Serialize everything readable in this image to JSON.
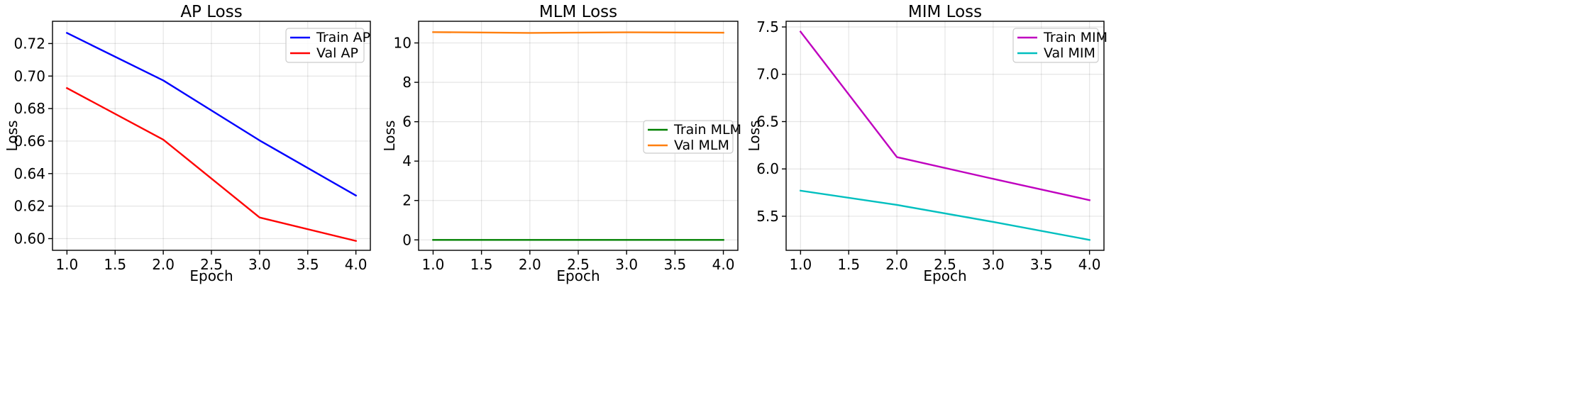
{
  "chart_data": [
    {
      "type": "line",
      "title": "AP Loss",
      "xlabel": "Epoch",
      "ylabel": "Loss",
      "xlim": [
        0.85,
        4.15
      ],
      "ylim": [
        0.5928,
        0.7337
      ],
      "xticks": [
        1.0,
        1.5,
        2.0,
        2.5,
        3.0,
        3.5,
        4.0
      ],
      "xtick_labels": [
        "1.0",
        "1.5",
        "2.0",
        "2.5",
        "3.0",
        "3.5",
        "4.0"
      ],
      "yticks": [
        0.6,
        0.62,
        0.64,
        0.66,
        0.68,
        0.7,
        0.72
      ],
      "ytick_labels": [
        "0.60",
        "0.62",
        "0.64",
        "0.66",
        "0.68",
        "0.70",
        "0.72"
      ],
      "grid": true,
      "legend": "upper-right",
      "x": [
        1,
        2,
        3,
        4
      ],
      "series": [
        {
          "name": "Train AP",
          "color": "#0000ff",
          "values": [
            0.7265,
            0.6973,
            0.6604,
            0.6265
          ]
        },
        {
          "name": "Val AP",
          "color": "#ff0000",
          "values": [
            0.6926,
            0.6609,
            0.613,
            0.5986
          ]
        }
      ]
    },
    {
      "type": "line",
      "title": "MLM Loss",
      "xlabel": "Epoch",
      "ylabel": "Loss",
      "xlim": [
        0.85,
        4.15
      ],
      "ylim": [
        -0.53,
        11.1
      ],
      "xticks": [
        1.0,
        1.5,
        2.0,
        2.5,
        3.0,
        3.5,
        4.0
      ],
      "xtick_labels": [
        "1.0",
        "1.5",
        "2.0",
        "2.5",
        "3.0",
        "3.5",
        "4.0"
      ],
      "yticks": [
        0,
        2,
        4,
        6,
        8,
        10
      ],
      "ytick_labels": [
        "0",
        "2",
        "4",
        "6",
        "8",
        "10"
      ],
      "grid": true,
      "legend": "center-right",
      "x": [
        1,
        2,
        3,
        4
      ],
      "series": [
        {
          "name": "Train MLM",
          "color": "#008000",
          "values": [
            0.0,
            0.0,
            0.0,
            0.0
          ]
        },
        {
          "name": "Val MLM",
          "color": "#ff7f0e",
          "values": [
            10.55,
            10.51,
            10.54,
            10.52
          ]
        }
      ]
    },
    {
      "type": "line",
      "title": "MIM Loss",
      "xlabel": "Epoch",
      "ylabel": "Loss",
      "xlim": [
        0.85,
        4.15
      ],
      "ylim": [
        5.14,
        7.56
      ],
      "xticks": [
        1.0,
        1.5,
        2.0,
        2.5,
        3.0,
        3.5,
        4.0
      ],
      "xtick_labels": [
        "1.0",
        "1.5",
        "2.0",
        "2.5",
        "3.0",
        "3.5",
        "4.0"
      ],
      "yticks": [
        5.5,
        6.0,
        6.5,
        7.0,
        7.5
      ],
      "ytick_labels": [
        "5.5",
        "6.0",
        "6.5",
        "7.0",
        "7.5"
      ],
      "grid": true,
      "legend": "upper-right",
      "x": [
        1,
        2,
        3,
        4
      ],
      "series": [
        {
          "name": "Train MIM",
          "color": "#bf00bf",
          "values": [
            7.45,
            6.125,
            5.895,
            5.67
          ]
        },
        {
          "name": "Val MIM",
          "color": "#00bfbf",
          "values": [
            5.77,
            5.62,
            5.44,
            5.25
          ]
        }
      ]
    }
  ]
}
